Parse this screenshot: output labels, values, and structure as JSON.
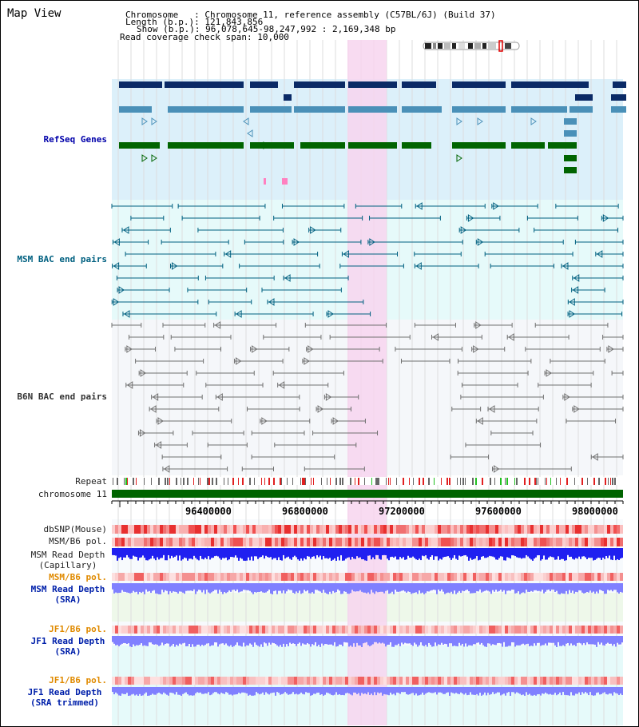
{
  "title": "Map View",
  "info": {
    "chromosome_label": "Chromosome   ",
    "chromosome_value": ": Chromosome 11, reference assembly (C57BL/6J) (Build 37)",
    "length_label": "Length (b.p.)",
    "length_value": ": 121,843,856",
    "show_label": "Show (b.p.)",
    "show_value": ": 96,078,645-98,247,992 : 2,169,348 bp",
    "coverage_label": "Read coverage check span",
    "coverage_value": ": 10,000"
  },
  "tracks": {
    "refseq": "RefSeq Genes",
    "msm_bac": "MSM BAC end pairs",
    "b6n_bac": "B6N BAC end pairs",
    "repeat": "Repeat",
    "chromosome": "chromosome 11",
    "dbsnp": "dbSNP(Mouse)",
    "msm_b6_pol": "MSM/B6 pol.",
    "msm_depth_cap_1": "MSM Read Depth",
    "msm_depth_cap_2": "(Capillary)",
    "msm_b6_pol_sra": "MSM/B6 pol.",
    "msm_depth_sra_1": "MSM Read Depth",
    "msm_depth_sra_2": "(SRA)",
    "jf1_b6_pol": "JF1/B6 pol.",
    "jf1_depth_1": "JF1 Read Depth",
    "jf1_depth_2": "(SRA)",
    "jf1_b6_pol_2": "JF1/B6 pol.",
    "jf1_trim_1": "JF1 Read Depth",
    "jf1_trim_2": "(SRA trimmed)"
  },
  "axis_ticks": [
    "96400000",
    "96800000",
    "97200000",
    "97600000",
    "98000000"
  ],
  "colors": {
    "highlight": "#f7d5ee",
    "refseq_bg": "#dcf0fa",
    "msm_bg": "#e6fafa",
    "b6n_bg": "#f5f7fa",
    "gene_navy": "#0a2a66",
    "gene_blue": "#4a90b8",
    "gene_green": "#006400",
    "bac_teal": "#006080",
    "bac_gray": "#707070",
    "chromosome_green": "#006400",
    "depth_blue": "#2020f0",
    "depth_light": "#8080ff",
    "snp_red": "#f04040"
  }
}
